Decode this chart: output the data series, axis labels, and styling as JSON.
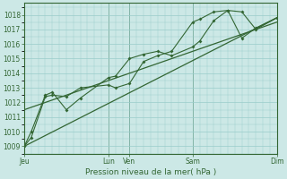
{
  "xlabel": "Pression niveau de la mer( hPa )",
  "bg_color": "#cce8e6",
  "grid_color": "#99ccca",
  "line_color": "#336633",
  "text_color": "#336633",
  "ylim": [
    1008.5,
    1018.8
  ],
  "yticks": [
    1009,
    1010,
    1011,
    1012,
    1013,
    1014,
    1015,
    1016,
    1017,
    1018
  ],
  "xlim": [
    0,
    9.0
  ],
  "x_day_positions": [
    0.0,
    3.0,
    3.75,
    6.0,
    9.0
  ],
  "x_day_labels": [
    "Jeu",
    "Lun",
    "Ven",
    "Sam",
    "Dim"
  ],
  "line1_x": [
    0,
    0.25,
    0.75,
    1.0,
    1.5,
    2.0,
    3.0,
    3.25,
    3.75,
    4.25,
    4.75,
    5.25,
    6.0,
    6.25,
    6.75,
    7.25,
    7.75,
    8.25,
    9.0
  ],
  "line1_y": [
    1009.0,
    1009.6,
    1012.4,
    1012.5,
    1012.4,
    1013.0,
    1013.2,
    1013.0,
    1013.3,
    1014.8,
    1015.2,
    1015.5,
    1017.5,
    1017.7,
    1018.2,
    1018.3,
    1016.4,
    1017.1,
    1017.8
  ],
  "line2_x": [
    0,
    0.25,
    0.75,
    1.0,
    1.5,
    2.0,
    3.0,
    3.25,
    3.75,
    4.25,
    4.75,
    5.25,
    6.0,
    6.25,
    6.75,
    7.25,
    7.75,
    8.25,
    9.0
  ],
  "line2_y": [
    1009.0,
    1010.0,
    1012.5,
    1012.7,
    1011.5,
    1012.3,
    1013.7,
    1013.8,
    1015.0,
    1015.3,
    1015.5,
    1015.2,
    1015.8,
    1016.2,
    1017.6,
    1018.3,
    1018.2,
    1017.0,
    1017.8
  ],
  "trend1_x": [
    0,
    9.0
  ],
  "trend1_y": [
    1009.0,
    1017.8
  ],
  "trend2_x": [
    0,
    9.0
  ],
  "trend2_y": [
    1011.5,
    1017.5
  ],
  "vline_positions": [
    3.0,
    3.75,
    6.0,
    9.0
  ]
}
